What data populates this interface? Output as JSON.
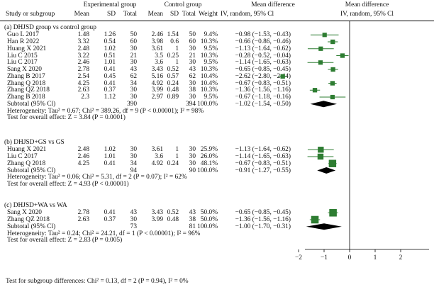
{
  "header": {
    "col_study": "Study or subgroup",
    "exp_group": "Experimental group",
    "ctrl_group": "Control group",
    "mean_diff": "Mean difference",
    "mean_diff_plot": "Mean difference",
    "mean": "Mean",
    "sd": "SD",
    "total": "Total",
    "weight": "Weight",
    "iv": "IV, random, 95% Cl",
    "iv_plot": "IV, random, 95% Cl"
  },
  "subgroups": [
    {
      "title": "(a)    DHJSD group vs control group",
      "studies": [
        {
          "name": "Guo L 2017",
          "em": "1.48",
          "esd": "1.26",
          "et": "50",
          "cm": "2.46",
          "csd": "1.54",
          "ct": "50",
          "w": "9.4%",
          "ci": "−0.98 (−1.53, −0.43)"
        },
        {
          "name": "Han R 2022",
          "em": "3.32",
          "esd": "0.54",
          "et": "60",
          "cm": "3.98",
          "csd": "0.6",
          "ct": "60",
          "w": "10.3%",
          "ci": "−0.66 (−0.86, −0.46)"
        },
        {
          "name": "Huang X 2021",
          "em": "2.48",
          "esd": "1.02",
          "et": "30",
          "cm": "3.61",
          "csd": "1",
          "ct": "30",
          "w": "9.5%",
          "ci": "−1.13 (−1.64, −0.62)"
        },
        {
          "name": "Liu C 2015",
          "em": "3.22",
          "esd": "0.51",
          "et": "21",
          "cm": "3.5",
          "csd": "0.25",
          "ct": "21",
          "w": "10.3%",
          "ci": "−0.28 (−0.52, −0.04)"
        },
        {
          "name": "Liu C 2017",
          "em": "2.46",
          "esd": "1.01",
          "et": "30",
          "cm": "3.6",
          "csd": "1",
          "ct": "30",
          "w": "9.5%",
          "ci": "−1.14 (−1.65, −0.63)"
        },
        {
          "name": "Sang X 2020",
          "em": "2.78",
          "esd": "0.41",
          "et": "43",
          "cm": "3.43",
          "csd": "0.52",
          "ct": "43",
          "w": "10.3%",
          "ci": "−0.65 (−0.85, −0.45)"
        },
        {
          "name": "Zhang B 2017",
          "em": "2.54",
          "esd": "0.45",
          "et": "62",
          "cm": "5.16",
          "csd": "0.57",
          "ct": "62",
          "w": "10.4%",
          "ci": "−2.62 (−2.80, −2.44)"
        },
        {
          "name": "Zhang Q 2018",
          "em": "4.25",
          "esd": "0.41",
          "et": "34",
          "cm": "4.92",
          "csd": "0.24",
          "ct": "30",
          "w": "10.4%",
          "ci": "−0.67 (−0.83, −0.51)"
        },
        {
          "name": "Zhang QZ 2018",
          "em": "2.63",
          "esd": "0.37",
          "et": "30",
          "cm": "3.99",
          "csd": "0.48",
          "ct": "38",
          "w": "10.3%",
          "ci": "−1.36 (−1.56, −1.16)"
        },
        {
          "name": "Zhang B 2018",
          "em": "2.3",
          "esd": "1.12",
          "et": "30",
          "cm": "2.97",
          "csd": "0.89",
          "ct": "30",
          "w": "9.5%",
          "ci": "−0.67 (−1.18, −0.16)"
        }
      ],
      "subtotal": {
        "label": "Subtotal (95% Cl)",
        "et": "390",
        "ct": "394",
        "w": "100.0%",
        "ci": "−1.02 (−1.54, −0.50)"
      },
      "het": "Heterogeneity: Tau² = 0.67; Chi² = 389.26, df = 9 (P < 0.00001); I² = 98%",
      "test": "Test for overall effect: Z = 3.84 (P = 0.0001)"
    },
    {
      "title": "(b)    DHJSD+GS vs GS",
      "studies": [
        {
          "name": "Huang X 2021",
          "em": "2.48",
          "esd": "1.02",
          "et": "30",
          "cm": "3.61",
          "csd": "1",
          "ct": "30",
          "w": "25.9%",
          "ci": "−1.13 (−1.64, −0.62)"
        },
        {
          "name": "Liu C 2017",
          "em": "2.46",
          "esd": "1.01",
          "et": "30",
          "cm": "3.6",
          "csd": "1",
          "ct": "30",
          "w": "26.0%",
          "ci": "−1.14 (−1.65, −0.63)"
        },
        {
          "name": "Zhang Q 2018",
          "em": "4.25",
          "esd": "0.41",
          "et": "34",
          "cm": "4.92",
          "csd": "0.24",
          "ct": "30",
          "w": "48.1%",
          "ci": "−0.67 (−0.83, −0.51)"
        }
      ],
      "subtotal": {
        "label": "Subtotal (95% Cl)",
        "et": "94",
        "ct": "90",
        "w": "100.0%",
        "ci": "−0.91 (−1.27, −0.55)"
      },
      "het": "Heterogeneity: Tau² = 0.06; Chi² = 5.31, df = 2 (P = 0.07); I² = 62%",
      "test": "Test for overall effect: Z = 4.93 (P < 0.00001)"
    },
    {
      "title": "(c)    DHJSD+WA vs WA",
      "studies": [
        {
          "name": "Sang X 2020",
          "em": "2.78",
          "esd": "0.41",
          "et": "43",
          "cm": "3.43",
          "csd": "0.52",
          "ct": "43",
          "w": "50.0%",
          "ci": "−0.65 (−0.85, −0.45)"
        },
        {
          "name": "Zhang QZ 2018",
          "em": "2.63",
          "esd": "0.37",
          "et": "30",
          "cm": "3.99",
          "csd": "0.48",
          "ct": "38",
          "w": "50.0%",
          "ci": "−1.36 (−1.56, −1.16)"
        }
      ],
      "subtotal": {
        "label": "Subtotal (95% Cl)",
        "et": "73",
        "ct": "81",
        "w": "100.0%",
        "ci": "−1.00 (−1.70, −0.31)"
      },
      "het": "Heterogeneity: Tau² = 0.24; Chi² = 24.21, df = 1 (P < 0.00001); I² = 96%",
      "test": "Test for overall effect: Z = 2.83 (P = 0.005)"
    }
  ],
  "footer": {
    "subgroup_test": "Test for subgroup differences: Chi² = 0.13, df = 2 (P = 0.94), I² = 0%"
  },
  "chart_data": {
    "type": "forest",
    "xlim": [
      -2.8,
      3
    ],
    "xticks": [
      -2,
      -1,
      0,
      1,
      2
    ],
    "xtick_labels": [
      "−2",
      "−1",
      "0",
      "1",
      "2"
    ],
    "colors": {
      "marker": "#2e7d32",
      "line": "#2e7d32",
      "diamond": "#000000"
    },
    "panels": [
      {
        "subgroup": "DHJSD group vs control group",
        "points": [
          {
            "study": "Guo L 2017",
            "md": -0.98,
            "lo": -1.53,
            "hi": -0.43,
            "weight": 9.4
          },
          {
            "study": "Han R 2022",
            "md": -0.66,
            "lo": -0.86,
            "hi": -0.46,
            "weight": 10.3
          },
          {
            "study": "Huang X 2021",
            "md": -1.13,
            "lo": -1.64,
            "hi": -0.62,
            "weight": 9.5
          },
          {
            "study": "Liu C 2015",
            "md": -0.28,
            "lo": -0.52,
            "hi": -0.04,
            "weight": 10.3
          },
          {
            "study": "Liu C 2017",
            "md": -1.14,
            "lo": -1.65,
            "hi": -0.63,
            "weight": 9.5
          },
          {
            "study": "Sang X 2020",
            "md": -0.65,
            "lo": -0.85,
            "hi": -0.45,
            "weight": 10.3
          },
          {
            "study": "Zhang B 2017",
            "md": -2.62,
            "lo": -2.8,
            "hi": -2.44,
            "weight": 10.4
          },
          {
            "study": "Zhang Q 2018",
            "md": -0.67,
            "lo": -0.83,
            "hi": -0.51,
            "weight": 10.4
          },
          {
            "study": "Zhang QZ 2018",
            "md": -1.36,
            "lo": -1.56,
            "hi": -1.16,
            "weight": 10.3
          },
          {
            "study": "Zhang B 2018",
            "md": -0.67,
            "lo": -1.18,
            "hi": -0.16,
            "weight": 9.5
          }
        ],
        "pooled": {
          "md": -1.02,
          "lo": -1.54,
          "hi": -0.5
        }
      },
      {
        "subgroup": "DHJSD+GS vs GS",
        "points": [
          {
            "study": "Huang X 2021",
            "md": -1.13,
            "lo": -1.64,
            "hi": -0.62,
            "weight": 25.9
          },
          {
            "study": "Liu C 2017",
            "md": -1.14,
            "lo": -1.65,
            "hi": -0.63,
            "weight": 26.0
          },
          {
            "study": "Zhang Q 2018",
            "md": -0.67,
            "lo": -0.83,
            "hi": -0.51,
            "weight": 48.1
          }
        ],
        "pooled": {
          "md": -0.91,
          "lo": -1.27,
          "hi": -0.55
        }
      },
      {
        "subgroup": "DHJSD+WA vs WA",
        "points": [
          {
            "study": "Sang X 2020",
            "md": -0.65,
            "lo": -0.85,
            "hi": -0.45,
            "weight": 50.0
          },
          {
            "study": "Zhang QZ 2018",
            "md": -1.36,
            "lo": -1.56,
            "hi": -1.16,
            "weight": 50.0
          }
        ],
        "pooled": {
          "md": -1.0,
          "lo": -1.7,
          "hi": -0.31
        }
      }
    ]
  }
}
